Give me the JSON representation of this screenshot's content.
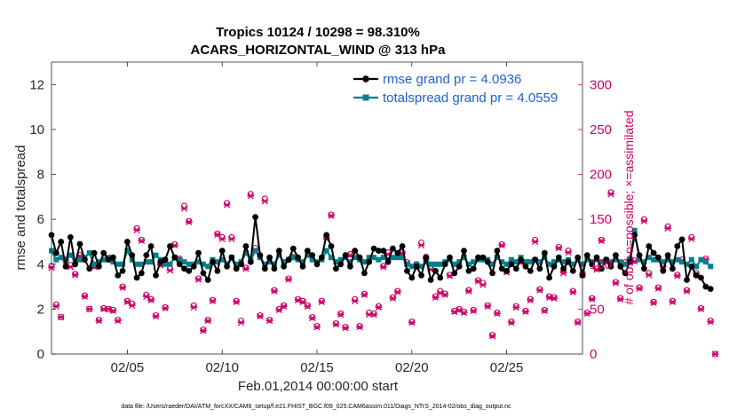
{
  "title_line1": "Tropics 10124 / 10298 = 98.310%",
  "title_line2": "ACARS_HORIZONTAL_WIND @ 313 hPa",
  "footer": "data file: /Users/raeder/DAI/ATM_forcXX/CAM6_setup/f.e21.FHIST_BGC.f09_025.CAM6assim.011/Diags_NTrS_2014-02/obs_diag_output.nc",
  "colors": {
    "rmse": "#000000",
    "spread": "#00808c",
    "obs": "#cc0066",
    "legend_text": "#1f5fd6"
  },
  "chart_data": {
    "type": "line",
    "xlabel": "Feb.01,2014 00:00:00 start",
    "ylabel": "rmse and totalspread",
    "y2label": "# of obs: o=possible; ×=assimilated",
    "xlim": [
      1,
      29
    ],
    "ylim": [
      0,
      13
    ],
    "y2lim": [
      0,
      325
    ],
    "xticks": [
      5,
      10,
      15,
      20,
      25
    ],
    "xtick_labels": [
      "02/05",
      "02/10",
      "02/15",
      "02/20",
      "02/25"
    ],
    "yticks": [
      0,
      2,
      4,
      6,
      8,
      10,
      12
    ],
    "y2ticks": [
      0,
      50,
      100,
      150,
      200,
      250,
      300
    ],
    "legend": [
      {
        "key": "rmse",
        "label": "rmse grand pr = 4.0936"
      },
      {
        "key": "spread",
        "label": "totalspread grand pr = 4.0559"
      }
    ],
    "time_start": 1.0,
    "time_step": 0.25,
    "rmse": [
      5.3,
      4.5,
      5.0,
      3.9,
      5.2,
      4.0,
      4.9,
      4.2,
      3.8,
      4.5,
      3.9,
      4.5,
      4.2,
      4.3,
      3.5,
      3.7,
      5.0,
      4.4,
      3.4,
      3.6,
      4.4,
      4.8,
      3.5,
      4.1,
      4.2,
      4.8,
      4.3,
      4.0,
      3.8,
      3.7,
      3.9,
      4.5,
      3.6,
      3.3,
      4.1,
      3.7,
      4.6,
      3.9,
      4.3,
      3.8,
      4.0,
      4.8,
      4.1,
      6.1,
      4.4,
      3.8,
      4.3,
      3.8,
      4.6,
      3.9,
      4.2,
      4.7,
      4.3,
      3.9,
      4.6,
      4.4,
      4.0,
      4.3,
      5.3,
      4.8,
      3.8,
      4.0,
      4.4,
      3.9,
      4.6,
      4.3,
      3.6,
      4.1,
      4.7,
      4.6,
      4.6,
      4.1,
      4.7,
      4.5,
      4.8,
      3.7,
      3.4,
      3.9,
      3.5,
      4.3,
      3.3,
      3.7,
      3.4,
      4.0,
      4.3,
      3.6,
      3.9,
      4.6,
      3.7,
      3.8,
      4.3,
      4.3,
      4.1,
      3.6,
      4.6,
      3.8,
      3.7,
      4.0,
      3.8,
      4.2,
      3.9,
      3.7,
      4.2,
      3.8,
      4.5,
      3.4,
      3.9,
      4.3,
      3.8,
      4.1,
      3.7,
      4.3,
      3.5,
      4.4,
      4.0,
      4.3,
      3.8,
      4.2,
      3.9,
      4.4,
      3.9,
      3.6,
      4.1,
      5.3,
      4.4,
      3.8,
      4.8,
      4.5,
      4.3,
      3.7,
      4.4,
      3.8,
      4.8,
      5.1,
      3.3,
      3.9,
      3.5,
      3.4,
      3.0,
      2.9
    ],
    "spread": [
      4.6,
      4.2,
      4.3,
      4.2,
      4.4,
      4.1,
      4.2,
      4.3,
      4.5,
      4.0,
      4.1,
      4.2,
      4.3,
      4.1,
      4.0,
      4.0,
      4.6,
      4.2,
      4.0,
      4.0,
      4.1,
      4.1,
      4.4,
      4.2,
      4.0,
      4.0,
      4.3,
      4.2,
      4.1,
      4.0,
      4.0,
      4.1,
      4.0,
      3.9,
      4.2,
      4.1,
      4.2,
      4.0,
      4.3,
      4.0,
      4.1,
      4.5,
      4.2,
      4.6,
      4.3,
      4.0,
      4.1,
      4.0,
      4.4,
      4.1,
      4.2,
      4.3,
      4.2,
      4.1,
      4.4,
      4.2,
      4.1,
      4.2,
      4.6,
      4.3,
      4.1,
      4.2,
      4.3,
      4.1,
      4.3,
      4.2,
      4.1,
      4.3,
      4.3,
      4.2,
      4.3,
      4.2,
      4.3,
      4.3,
      4.3,
      4.0,
      3.9,
      4.0,
      3.9,
      4.1,
      4.0,
      4.0,
      4.0,
      4.1,
      4.2,
      4.0,
      4.1,
      4.3,
      4.0,
      4.1,
      4.2,
      4.2,
      4.2,
      4.0,
      4.3,
      4.1,
      4.0,
      4.2,
      4.1,
      4.3,
      4.1,
      4.1,
      4.2,
      4.1,
      4.3,
      4.0,
      4.1,
      4.2,
      4.1,
      4.2,
      4.0,
      4.2,
      4.0,
      4.2,
      4.1,
      4.2,
      4.1,
      4.2,
      4.1,
      4.2,
      4.1,
      4.0,
      4.2,
      5.5,
      4.2,
      4.1,
      4.3,
      4.2,
      4.2,
      4.1,
      4.2,
      4.1,
      4.2,
      4.1,
      4.0,
      4.2,
      3.9,
      4.2,
      4.1,
      3.9
    ],
    "obs_assimilated": [
      96,
      53,
      41,
      104,
      97,
      88,
      109,
      64,
      50,
      97,
      37,
      50,
      50,
      48,
      37,
      74,
      58,
      54,
      138,
      126,
      64,
      60,
      42,
      99,
      51,
      93,
      121,
      104,
      162,
      147,
      52,
      83,
      26,
      37,
      59,
      133,
      128,
      166,
      128,
      58,
      35,
      95,
      176,
      116,
      42,
      170,
      37,
      70,
      49,
      53,
      83,
      107,
      60,
      58,
      53,
      40,
      30,
      58,
      128,
      154,
      33,
      44,
      29,
      110,
      59,
      30,
      66,
      44,
      44,
      52,
      97,
      111,
      62,
      69,
      112,
      101,
      35,
      99,
      121,
      106,
      94,
      63,
      68,
      66,
      87,
      47,
      49,
      46,
      70,
      48,
      81,
      77,
      53,
      20,
      45,
      121,
      91,
      35,
      52,
      102,
      47,
      60,
      125,
      71,
      48,
      63,
      62,
      118,
      90,
      113,
      69,
      35,
      88,
      45,
      61,
      94,
      126,
      102,
      178,
      79,
      61,
      101,
      105,
      103,
      73,
      148,
      88,
      57,
      73,
      97,
      140,
      58,
      87,
      104,
      70,
      128,
      89,
      50,
      105,
      36,
      0
    ],
    "obs_possible": [
      98,
      55,
      41,
      105,
      99,
      89,
      110,
      65,
      50,
      98,
      38,
      51,
      50,
      49,
      38,
      75,
      59,
      56,
      140,
      127,
      66,
      61,
      43,
      100,
      52,
      95,
      122,
      106,
      165,
      148,
      54,
      84,
      27,
      38,
      60,
      134,
      130,
      168,
      130,
      59,
      37,
      96,
      178,
      118,
      43,
      173,
      38,
      71,
      50,
      54,
      84,
      108,
      61,
      59,
      54,
      41,
      31,
      59,
      130,
      155,
      34,
      45,
      30,
      111,
      61,
      31,
      67,
      46,
      45,
      53,
      98,
      113,
      63,
      70,
      113,
      102,
      36,
      100,
      124,
      108,
      96,
      64,
      70,
      67,
      88,
      48,
      50,
      47,
      71,
      49,
      82,
      79,
      54,
      21,
      46,
      122,
      92,
      36,
      53,
      103,
      48,
      61,
      127,
      72,
      49,
      64,
      63,
      119,
      92,
      115,
      70,
      36,
      90,
      46,
      62,
      95,
      127,
      104,
      180,
      80,
      62,
      102,
      106,
      104,
      74,
      150,
      90,
      58,
      74,
      98,
      142,
      59,
      88,
      105,
      71,
      130,
      90,
      51,
      106,
      37,
      0
    ]
  }
}
